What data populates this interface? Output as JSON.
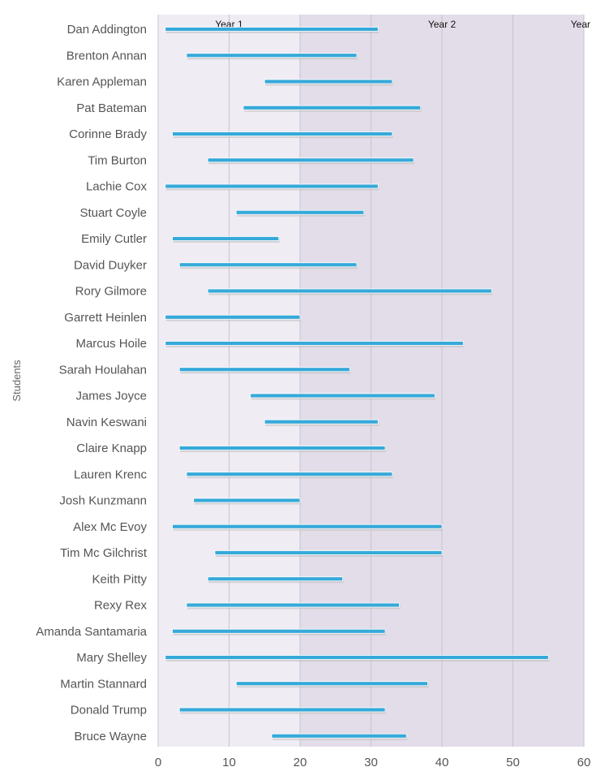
{
  "chart_data": {
    "type": "bar",
    "orientation": "horizontal",
    "subtype": "floating-range",
    "ylabel": "Students",
    "xlim": [
      0,
      60
    ],
    "xticks": [
      0,
      10,
      20,
      30,
      40,
      50,
      60
    ],
    "grid": true,
    "colors": {
      "bar": "#36a9d9",
      "band1": "#f0ecf4",
      "band2": "#e3dde9",
      "grid": "#c9c3cf"
    },
    "bands": [
      {
        "label": "Year 1",
        "from": 0,
        "to": 20
      },
      {
        "label": "Year 2",
        "from": 20,
        "to": 60
      },
      {
        "label": "Year",
        "from": 60,
        "to": 60
      }
    ],
    "categories": [
      "Dan Addington",
      "Brenton Annan",
      "Karen Appleman",
      "Pat Bateman",
      "Corinne Brady",
      "Tim Burton",
      "Lachie Cox",
      "Stuart Coyle",
      "Emily Cutler",
      "David Duyker",
      "Rory Gilmore",
      "Garrett Heinlen",
      "Marcus Hoile",
      "Sarah Houlahan",
      "James Joyce",
      "Navin Keswani",
      "Claire Knapp",
      "Lauren Krenc",
      "Josh Kunzmann",
      "Alex Mc Evoy",
      "Tim Mc Gilchrist",
      "Keith Pitty",
      "Rexy Rex",
      "Amanda Santamaria",
      "Mary Shelley",
      "Martin Stannard",
      "Donald Trump",
      "Bruce Wayne"
    ],
    "series": [
      {
        "ranges": [
          [
            1,
            31
          ],
          [
            4,
            28
          ],
          [
            15,
            33
          ],
          [
            12,
            37
          ],
          [
            2,
            33
          ],
          [
            7,
            36
          ],
          [
            1,
            31
          ],
          [
            11,
            29
          ],
          [
            2,
            17
          ],
          [
            3,
            28
          ],
          [
            7,
            47
          ],
          [
            1,
            20
          ],
          [
            1,
            43
          ],
          [
            3,
            27
          ],
          [
            13,
            39
          ],
          [
            15,
            31
          ],
          [
            3,
            32
          ],
          [
            4,
            33
          ],
          [
            5,
            20
          ],
          [
            2,
            40
          ],
          [
            8,
            40
          ],
          [
            7,
            26
          ],
          [
            4,
            34
          ],
          [
            2,
            32
          ],
          [
            1,
            55
          ],
          [
            11,
            38
          ],
          [
            3,
            32
          ],
          [
            16,
            35
          ]
        ]
      }
    ]
  }
}
